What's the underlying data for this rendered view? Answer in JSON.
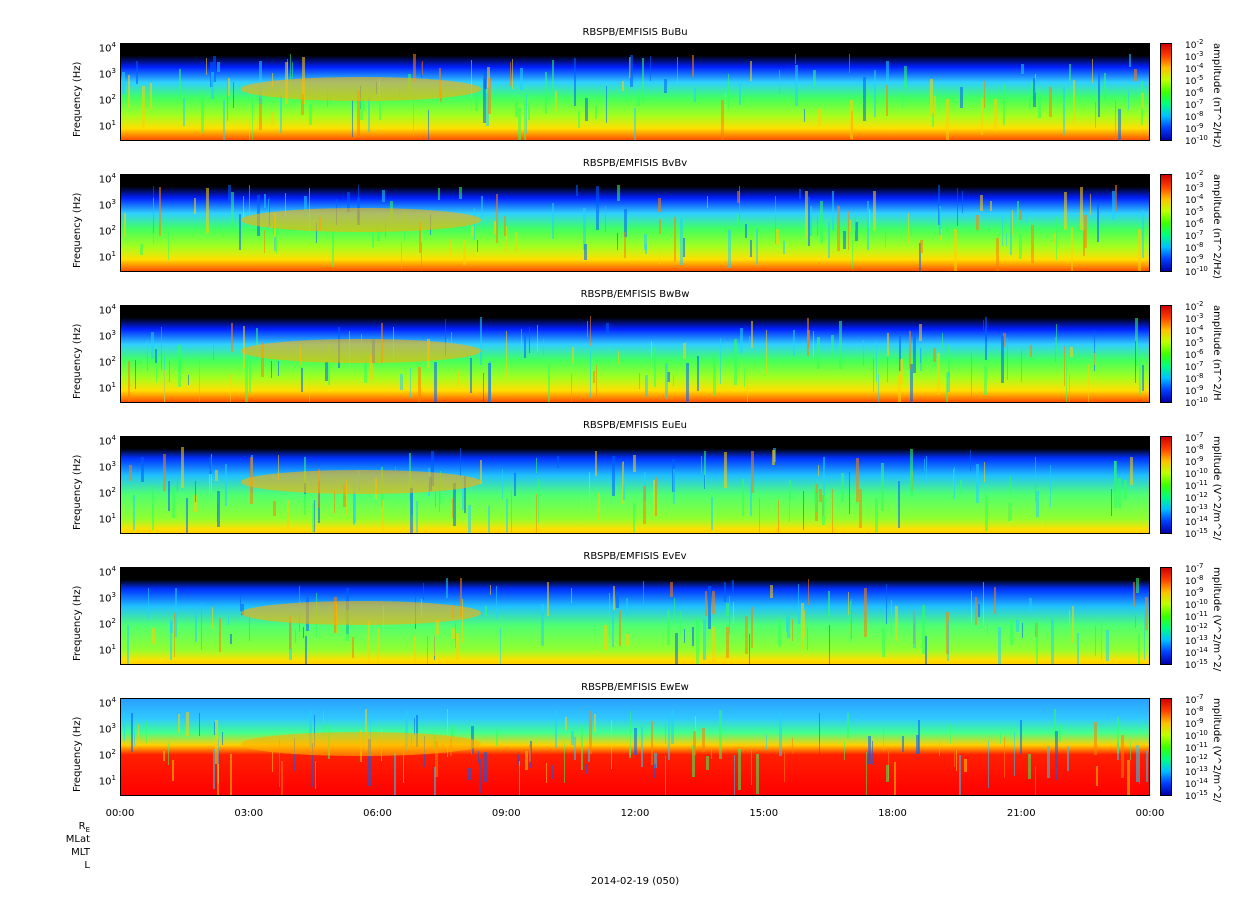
{
  "chart_data": [
    {
      "type": "heatmap",
      "title": "RBSPB/EMFISIS  BuBu",
      "ylabel": "Frequency (Hz)",
      "yscale": "log",
      "yticks": [
        "10^4",
        "10^3",
        "10^2",
        "10^1"
      ],
      "colorbar_label": "amplitude (nT^2/Hz)",
      "colorbar_ticks": [
        "10^-2",
        "10^-3",
        "10^-4",
        "10^-5",
        "10^-6",
        "10^-7",
        "10^-8",
        "10^-9",
        "10^-10"
      ]
    },
    {
      "type": "heatmap",
      "title": "RBSPB/EMFISIS  BvBv",
      "ylabel": "Frequency (Hz)",
      "yscale": "log",
      "yticks": [
        "10^4",
        "10^3",
        "10^2",
        "10^1"
      ],
      "colorbar_label": "amplitude (nT^2/Hz)",
      "colorbar_ticks": [
        "10^-2",
        "10^-3",
        "10^-4",
        "10^-5",
        "10^-6",
        "10^-7",
        "10^-8",
        "10^-9",
        "10^-10"
      ]
    },
    {
      "type": "heatmap",
      "title": "RBSPB/EMFISIS  BwBw",
      "ylabel": "Frequency (Hz)",
      "yscale": "log",
      "yticks": [
        "10^4",
        "10^3",
        "10^2",
        "10^1"
      ],
      "colorbar_label": "amplitude (nT^2/H",
      "colorbar_ticks": [
        "10^-2",
        "10^-3",
        "10^-4",
        "10^-5",
        "10^-6",
        "10^-7",
        "10^-8",
        "10^-9",
        "10^-10"
      ]
    },
    {
      "type": "heatmap",
      "title": "RBSPB/EMFISIS  EuEu",
      "ylabel": "Frequency (Hz)",
      "yscale": "log",
      "yticks": [
        "10^4",
        "10^3",
        "10^2",
        "10^1"
      ],
      "colorbar_label": "mplitude (V^2/m^2/",
      "colorbar_ticks": [
        "10^-7",
        "10^-8",
        "10^-9",
        "10^-10",
        "10^-11",
        "10^-12",
        "10^-13",
        "10^-14",
        "10^-15"
      ]
    },
    {
      "type": "heatmap",
      "title": "RBSPB/EMFISIS  EvEv",
      "ylabel": "Frequency (Hz)",
      "yscale": "log",
      "yticks": [
        "10^4",
        "10^3",
        "10^2",
        "10^1"
      ],
      "colorbar_label": "mplitude (V^2/m^2/",
      "colorbar_ticks": [
        "10^-7",
        "10^-8",
        "10^-9",
        "10^-10",
        "10^-11",
        "10^-12",
        "10^-13",
        "10^-14",
        "10^-15"
      ]
    },
    {
      "type": "heatmap",
      "title": "RBSPB/EMFISIS  EwEw",
      "ylabel": "Frequency (Hz)",
      "yscale": "log",
      "yticks": [
        "10^4",
        "10^3",
        "10^2",
        "10^1"
      ],
      "colorbar_label": "mplitude (V^2/m^2/",
      "colorbar_ticks": [
        "10^-7",
        "10^-8",
        "10^-9",
        "10^-10",
        "10^-11",
        "10^-12",
        "10^-13",
        "10^-14",
        "10^-15"
      ]
    }
  ],
  "xaxis": {
    "ticks": [
      "00:00",
      "03:00",
      "06:00",
      "09:00",
      "12:00",
      "15:00",
      "18:00",
      "21:00",
      "00:00"
    ],
    "row_labels": [
      "R",
      "MLat",
      "MLT",
      "L"
    ],
    "date": "2014-02-19 (050)"
  }
}
